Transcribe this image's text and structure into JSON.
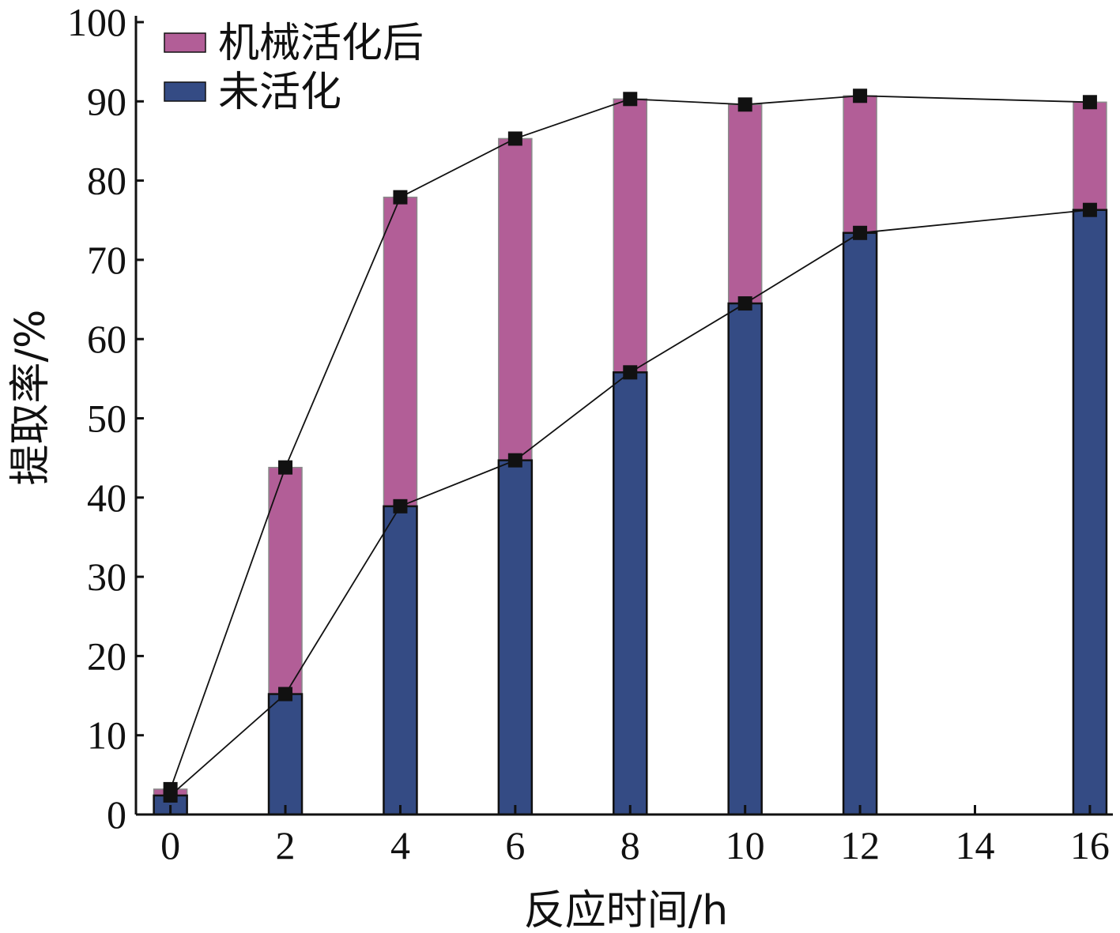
{
  "chart_data": {
    "type": "bar",
    "xlabel": "反应时间/h",
    "ylabel": "提取率/%",
    "xlim": [
      -0.6,
      16.4
    ],
    "ylim": [
      0,
      100
    ],
    "x_ticks": [
      0,
      2,
      4,
      6,
      8,
      10,
      12,
      14,
      16
    ],
    "y_ticks": [
      0,
      10,
      20,
      30,
      40,
      50,
      60,
      70,
      80,
      90,
      100
    ],
    "legend_position": "top-left",
    "x": [
      0,
      2,
      4,
      6,
      8,
      10,
      12,
      16
    ],
    "series": [
      {
        "name": "机械活化后",
        "color": "#b25e97",
        "values": [
          3.2,
          43.8,
          77.9,
          85.3,
          90.3,
          89.6,
          90.7,
          89.9
        ]
      },
      {
        "name": "未活化",
        "color": "#344b84",
        "values": [
          2.4,
          15.2,
          38.9,
          44.7,
          55.8,
          64.5,
          73.4,
          76.3
        ]
      }
    ]
  }
}
